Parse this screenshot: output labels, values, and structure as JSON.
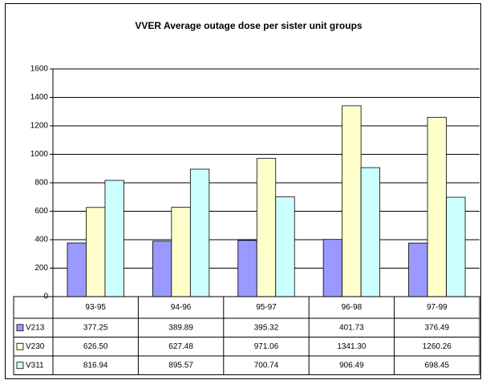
{
  "chart_data": {
    "type": "bar",
    "title": "VVER Average outage dose per sister unit groups",
    "categories": [
      "93-95",
      "94-96",
      "95-97",
      "96-98",
      "97-99"
    ],
    "series": [
      {
        "name": "V213",
        "color": "#9999ff",
        "values": [
          377.25,
          389.89,
          395.32,
          401.73,
          376.49
        ],
        "value_labels": [
          "377.25",
          "389.89",
          "395.32",
          "401.73",
          "376.49"
        ]
      },
      {
        "name": "V230",
        "color": "#ffffcc",
        "values": [
          626.5,
          627.48,
          971.06,
          1341.3,
          1260.26
        ],
        "value_labels": [
          "626.50",
          "627.48",
          "971.06",
          "1341.30",
          "1260.26"
        ]
      },
      {
        "name": "V311",
        "color": "#ccffff",
        "values": [
          816.94,
          895.57,
          700.74,
          906.49,
          698.45
        ],
        "value_labels": [
          "816.94",
          "895.57",
          "700.74",
          "906.49",
          "698.45"
        ]
      }
    ],
    "ylim": [
      0,
      1600
    ],
    "yticks": [
      0,
      200,
      400,
      600,
      800,
      1000,
      1200,
      1400,
      1600
    ],
    "grid": true
  }
}
